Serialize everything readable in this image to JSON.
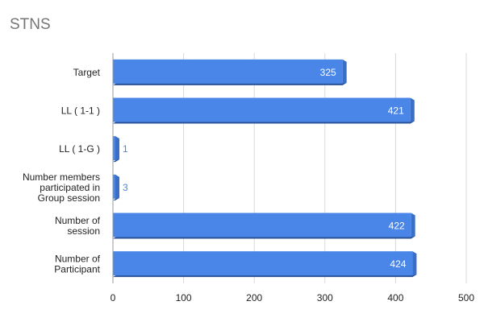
{
  "chart_data": {
    "type": "bar",
    "orientation": "horizontal",
    "title": "STNS",
    "categories": [
      "Target",
      "LL ( 1-1 )",
      "LL ( 1-G )",
      "Number members participated in Group session",
      "Number of session",
      "Number of Participant"
    ],
    "values": [
      325,
      421,
      1,
      3,
      422,
      424
    ],
    "data_labels": [
      "325",
      "421",
      "1",
      "3",
      "422",
      "424"
    ],
    "xlim": [
      0,
      500
    ],
    "xticks": [
      0,
      100,
      200,
      300,
      400,
      500
    ],
    "xtick_labels": [
      "0",
      "100",
      "200",
      "300",
      "400",
      "500"
    ],
    "grid": true,
    "bar_style": "3d",
    "colors": {
      "bar_face": "#4a86e8",
      "bar_top": "#6d9eeb",
      "bar_side": "#3a6fc8",
      "bar_bottom": "#2a5298",
      "label_inside": "#ffffff",
      "label_outside": "#4a86e8",
      "grid": "#d9d9d9",
      "title": "#757575"
    }
  }
}
